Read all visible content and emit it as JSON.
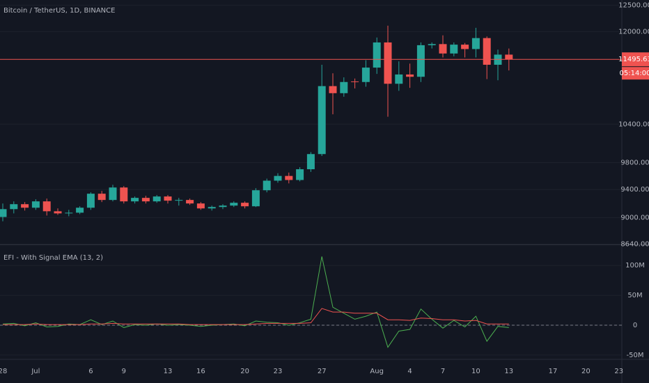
{
  "chart_data": [
    {
      "type": "candlestick",
      "title": "Bitcoin / TetherUS, 1D, BINANCE",
      "categories": [
        "28",
        null,
        null,
        "Jul",
        null,
        null,
        null,
        null,
        "6",
        null,
        null,
        "9",
        null,
        null,
        null,
        "13",
        null,
        null,
        "16",
        null,
        null,
        null,
        "20",
        null,
        null,
        "23",
        null,
        null,
        null,
        "27",
        null,
        null,
        null,
        null,
        "Aug",
        null,
        null,
        "4",
        null,
        null,
        "7",
        null,
        null,
        "10",
        null,
        null,
        "13",
        null,
        null,
        null,
        "17",
        null,
        null,
        "20",
        null,
        null,
        "23"
      ],
      "open": [
        9010,
        9120,
        9190,
        9140,
        9230,
        9090,
        9060,
        9070,
        9140,
        9340,
        9250,
        9430,
        9230,
        9280,
        9230,
        9300,
        9240,
        9250,
        9200,
        9130,
        9150,
        9170,
        9210,
        9160,
        9390,
        9530,
        9600,
        9540,
        9700,
        9930,
        11030,
        10910,
        11110,
        11100,
        11350,
        11800,
        11070,
        11230,
        11190,
        11750,
        11770,
        11600,
        11760,
        11680,
        11880,
        11400,
        11580,
        null,
        null,
        null,
        null,
        null,
        null,
        null,
        null,
        null,
        null
      ],
      "high": [
        9200,
        9230,
        9220,
        9260,
        9270,
        9130,
        9110,
        9160,
        9360,
        9380,
        9470,
        9450,
        9300,
        9310,
        9320,
        9320,
        9280,
        9270,
        9220,
        9170,
        9190,
        9230,
        9230,
        9420,
        9560,
        9640,
        9650,
        9730,
        9960,
        11400,
        11250,
        11180,
        11160,
        11480,
        11890,
        12110,
        11460,
        11420,
        11800,
        11800,
        11930,
        11800,
        11790,
        12070,
        11910,
        11670,
        11690,
        null,
        null,
        null,
        null,
        null,
        null,
        null,
        null,
        null,
        null
      ],
      "low": [
        8950,
        9060,
        9100,
        9110,
        9030,
        9040,
        9020,
        9050,
        9110,
        9220,
        9230,
        9200,
        9200,
        9200,
        9210,
        9200,
        9170,
        9180,
        9110,
        9100,
        9120,
        9150,
        9130,
        9150,
        9360,
        9500,
        9490,
        9520,
        9660,
        9900,
        10560,
        10850,
        10990,
        11020,
        11240,
        10520,
        10950,
        11000,
        11100,
        11690,
        11530,
        11550,
        11530,
        11530,
        11150,
        11130,
        11300,
        null,
        null,
        null,
        null,
        null,
        null,
        null,
        null,
        null,
        null
      ],
      "close": [
        9120,
        9190,
        9140,
        9230,
        9090,
        9060,
        9070,
        9140,
        9340,
        9250,
        9430,
        9230,
        9280,
        9230,
        9300,
        9240,
        9250,
        9200,
        9130,
        9150,
        9170,
        9210,
        9160,
        9390,
        9530,
        9600,
        9540,
        9700,
        9930,
        11030,
        10910,
        11100,
        11100,
        11350,
        11800,
        11070,
        11230,
        11190,
        11750,
        11770,
        11600,
        11760,
        11680,
        11880,
        11400,
        11580,
        11495.63,
        null,
        null,
        null,
        null,
        null,
        null,
        null,
        null,
        null,
        null
      ],
      "up_color": "#26a69a",
      "down_color": "#ef5350",
      "log_scale": true,
      "grid": true,
      "ylim": [
        8645,
        12600
      ],
      "yticks": [
        {
          "value": 8640,
          "label": "8640.00"
        },
        {
          "value": 9000,
          "label": "9000.00"
        },
        {
          "value": 9400,
          "label": "9400.00"
        },
        {
          "value": 9800,
          "label": "9800.00"
        },
        {
          "value": 10400,
          "label": "10400.00"
        },
        {
          "value": 12000,
          "label": "12000.00"
        },
        {
          "value": 12500,
          "label": "12500.00"
        }
      ],
      "last_price": 11495.63,
      "countdown": "05:14:00"
    },
    {
      "type": "line",
      "title": "EFI - With Signal EMA (13, 2)",
      "series": [
        {
          "color": "#4caf50",
          "values": [
            2000000,
            3000000,
            -1000000,
            4000000,
            -3000000,
            -2000000,
            2000000,
            1000000,
            9000000,
            1000000,
            7000000,
            -4000000,
            1000000,
            0,
            2000000,
            0,
            1000000,
            0,
            -2000000,
            0,
            1000000,
            2000000,
            -1000000,
            7000000,
            5000000,
            4000000,
            0,
            4000000,
            10000000,
            115000000,
            30000000,
            20000000,
            10000000,
            15000000,
            22000000,
            -37000000,
            -10000000,
            -7000000,
            27000000,
            10000000,
            -5000000,
            8000000,
            -3000000,
            15000000,
            -27000000,
            -2000000,
            -4000000,
            null,
            null,
            null,
            null,
            null,
            null,
            null,
            null,
            null,
            null
          ]
        },
        {
          "color": "#ef5350",
          "values": [
            1000000,
            1000000,
            1000000,
            2000000,
            1000000,
            1000000,
            1000000,
            1000000,
            2000000,
            2000000,
            3000000,
            2000000,
            2000000,
            2000000,
            2000000,
            2000000,
            2000000,
            1000000,
            1000000,
            1000000,
            1000000,
            1000000,
            1000000,
            2000000,
            3000000,
            3000000,
            3000000,
            3000000,
            4000000,
            28000000,
            22000000,
            22000000,
            20000000,
            20000000,
            20000000,
            9000000,
            9000000,
            8000000,
            12000000,
            11000000,
            9000000,
            9000000,
            7000000,
            8000000,
            2000000,
            2000000,
            2000000,
            null,
            null,
            null,
            null,
            null,
            null,
            null,
            null,
            null,
            null
          ]
        }
      ],
      "zero_line": true,
      "ylim": [
        -56000000,
        134000000
      ],
      "yticks": [
        {
          "value": -50000000,
          "label": "-50M"
        },
        0,
        {
          "value": 50000000,
          "label": "50M"
        },
        {
          "value": 100000000,
          "label": "100M"
        }
      ]
    }
  ]
}
